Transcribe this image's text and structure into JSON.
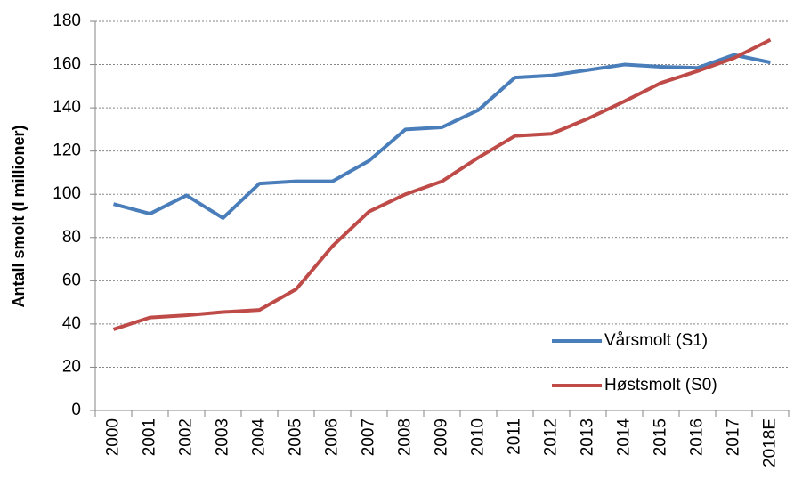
{
  "chart_data": {
    "type": "line",
    "y_label": "Antall smolt (I millioner)",
    "categories": [
      "2000",
      "2001",
      "2002",
      "2003",
      "2004",
      "2005",
      "2006",
      "2007",
      "2008",
      "2009",
      "2010",
      "2011",
      "2012",
      "2013",
      "2014",
      "2015",
      "2016",
      "2017",
      "2018E"
    ],
    "series": [
      {
        "name": "Vårsmolt (S1)",
        "color": "#4a7ebb",
        "values": [
          95.5,
          91,
          99.5,
          89,
          105,
          106,
          106,
          115.5,
          130,
          131,
          139,
          154,
          155,
          157.5,
          160,
          159,
          158.5,
          164.5,
          161
        ]
      },
      {
        "name": "Høstsmolt (S0)",
        "color": "#be4b48",
        "values": [
          37.5,
          43,
          44,
          45.5,
          46.5,
          56,
          76,
          92,
          100,
          106,
          117,
          127,
          128,
          135,
          143,
          151.5,
          157,
          163,
          171.5
        ]
      }
    ],
    "ylim": [
      0,
      180
    ],
    "yticks": [
      0,
      20,
      40,
      60,
      80,
      100,
      120,
      140,
      160,
      180
    ],
    "grid": true
  }
}
